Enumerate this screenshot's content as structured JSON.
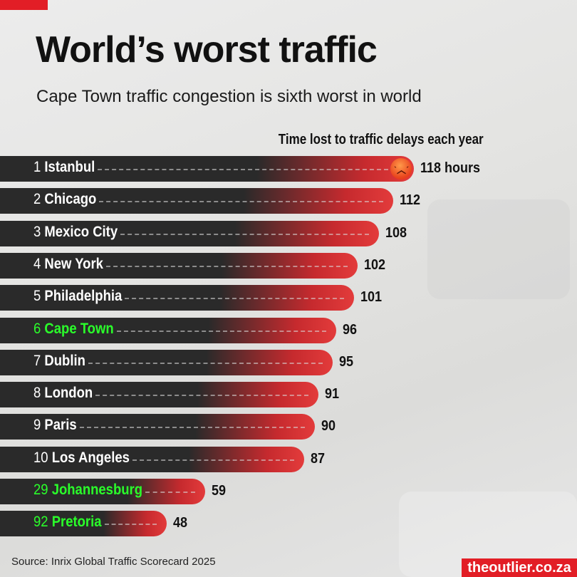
{
  "title": "World’s worst traffic",
  "subtitle": "Cape Town traffic congestion is sixth worst in world",
  "source": "Source: Inrix Global Traffic Scorecard 2025",
  "brand": "theoutlier.co.za",
  "colors": {
    "accent": "#e21e26",
    "bar_dark": "#2a2a2a",
    "bar_red": "#e33b3b",
    "highlight": "#2aff2a"
  },
  "chart_data": {
    "type": "bar",
    "orientation": "horizontal",
    "title": "World’s worst traffic",
    "subtitle": "Cape Town traffic congestion is sixth worst in world",
    "value_label": "Time lost to traffic delays each year",
    "unit_first": "hours",
    "ranks": [
      1,
      2,
      3,
      4,
      5,
      6,
      7,
      8,
      9,
      10,
      29,
      92
    ],
    "categories": [
      "Istanbul",
      "Chicago",
      "Mexico City",
      "New York",
      "Philadelphia",
      "Cape Town",
      "Dublin",
      "London",
      "Paris",
      "Los Angeles",
      "Johannesburg",
      "Pretoria"
    ],
    "values": [
      118,
      112,
      108,
      102,
      101,
      96,
      95,
      91,
      90,
      87,
      59,
      48
    ],
    "highlighted": [
      "Cape Town",
      "Johannesburg",
      "Pretoria"
    ],
    "icon_on_top_bar": "angry-face-emoji",
    "grid": false
  }
}
